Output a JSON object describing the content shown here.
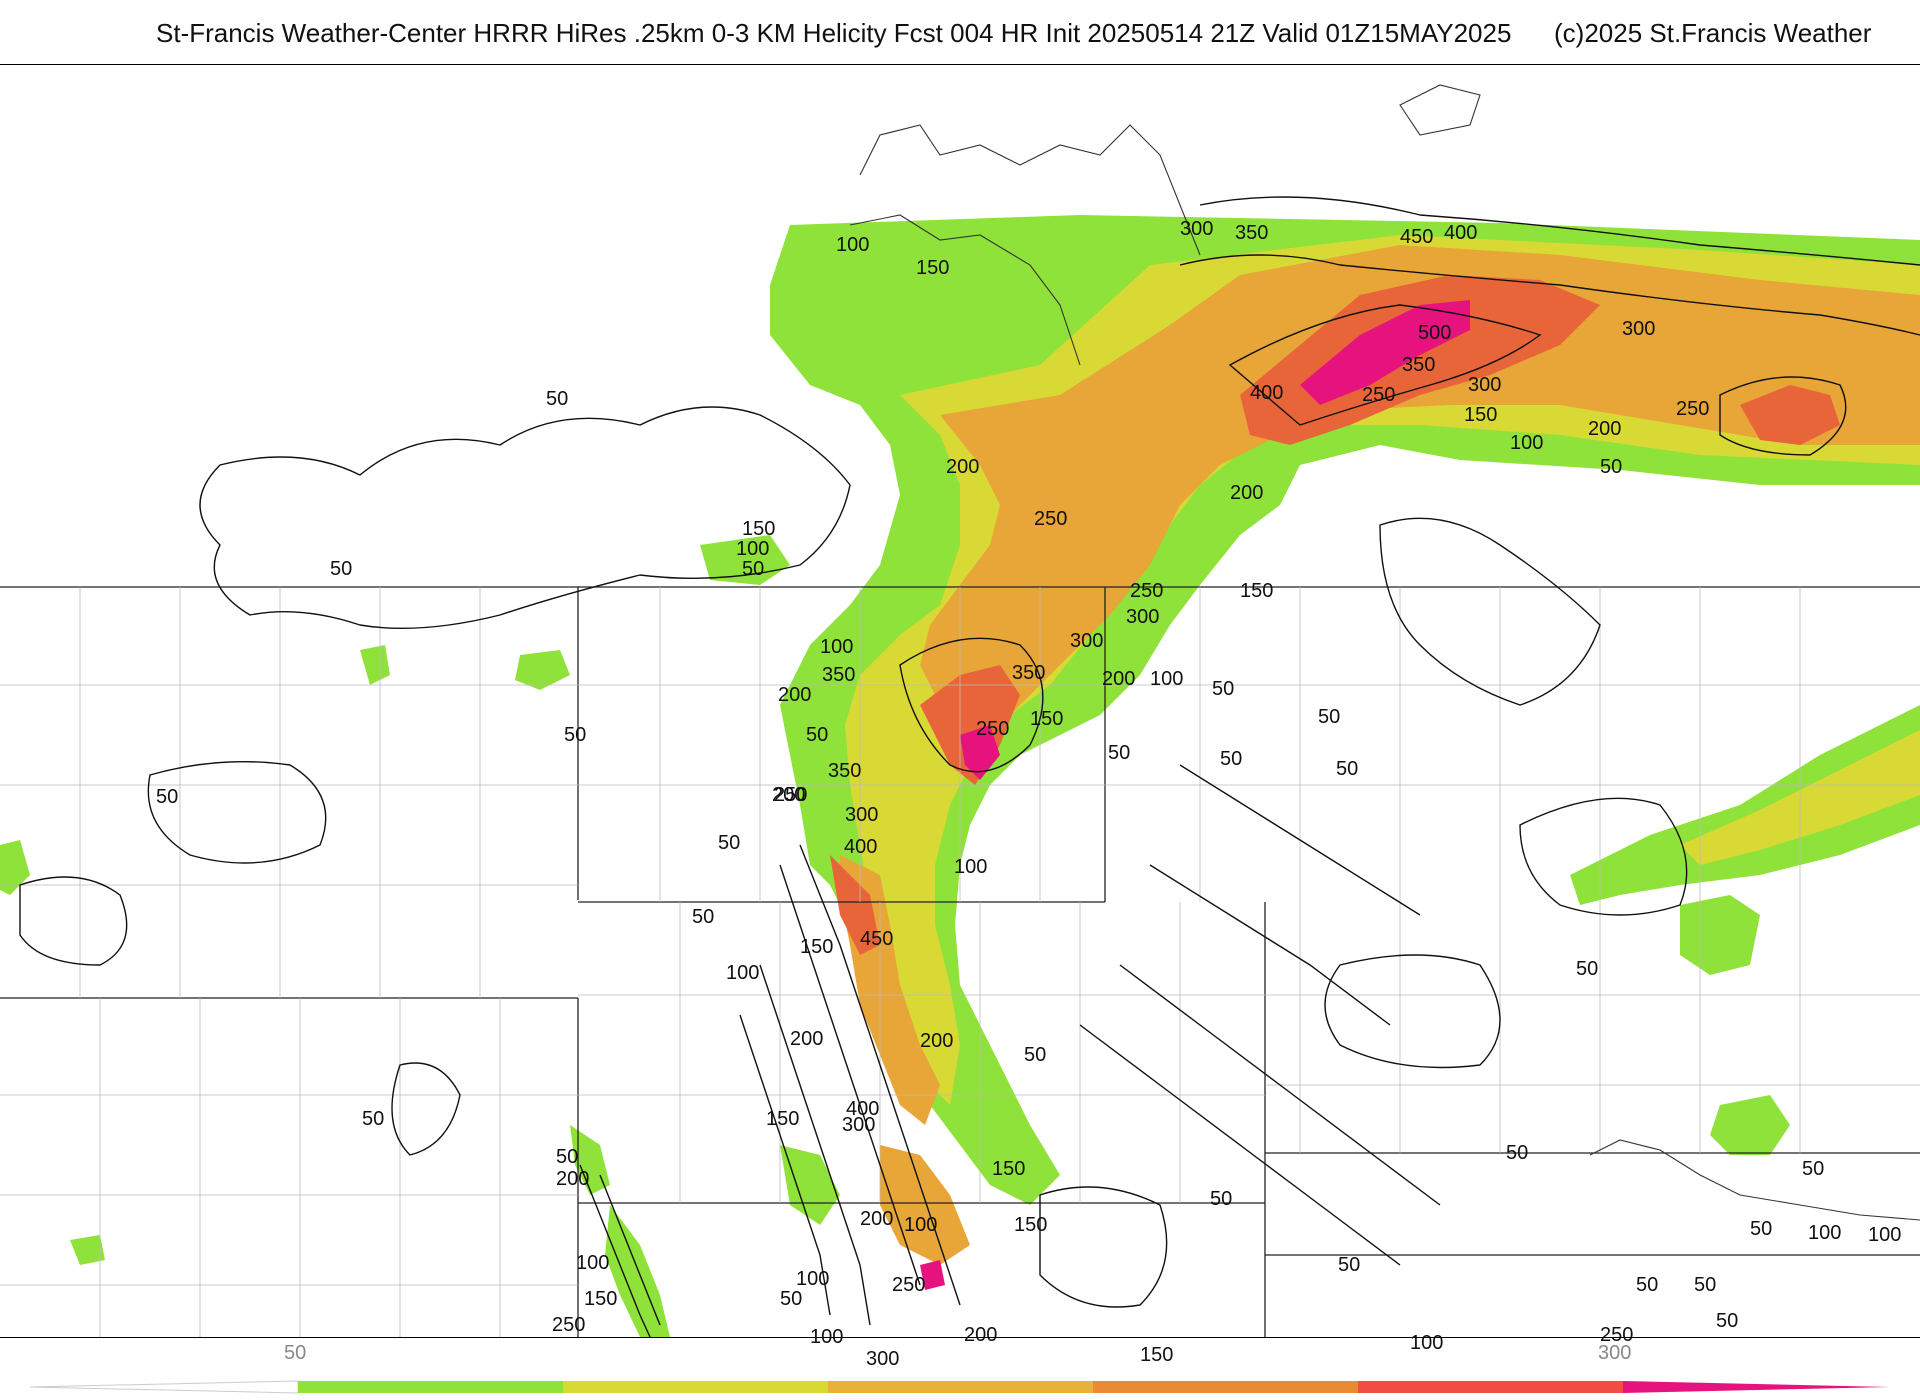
{
  "title": {
    "main": "St-Francis Weather-Center HRRR HiRes .25km 0-3 KM Helicity Fcst 004 HR Init 20250514 21Z  Valid 01Z15MAY2025",
    "copyright": "(c)2025 St.Francis Weather"
  },
  "colorbar": {
    "tick_labels": [
      "50",
      "300"
    ],
    "colors": [
      "#8fe23a",
      "#d9d935",
      "#e8b23a",
      "#ea8b34",
      "#f04e44",
      "#e6137e"
    ]
  },
  "contour_labels": [
    "100",
    "150",
    "50",
    "150",
    "100",
    "50",
    "50",
    "50",
    "50",
    "50",
    "300",
    "350",
    "450",
    "400",
    "500",
    "350",
    "400",
    "250",
    "300",
    "300",
    "150",
    "200",
    "100",
    "50",
    "250",
    "200",
    "200",
    "250",
    "250",
    "300",
    "150",
    "300",
    "100",
    "50",
    "200",
    "350",
    "350",
    "200",
    "250",
    "150",
    "100",
    "50",
    "50",
    "50",
    "50",
    "300",
    "400",
    "450",
    "100",
    "150",
    "200",
    "100",
    "50",
    "50",
    "200",
    "50",
    "250",
    "350",
    "400",
    "300",
    "150",
    "50",
    "200",
    "150",
    "150",
    "200",
    "100",
    "250",
    "100",
    "50",
    "100",
    "150",
    "100",
    "200",
    "50",
    "300",
    "150",
    "250",
    "200",
    "250",
    "100",
    "50",
    "50",
    "50",
    "50",
    "100",
    "50",
    "50",
    "50",
    "50",
    "50",
    "100"
  ],
  "colors": {
    "green": "#8fe23a",
    "yellow": "#d9d935",
    "orange": "#e8a538",
    "red_orange": "#e8653a",
    "magenta": "#e6137e"
  }
}
